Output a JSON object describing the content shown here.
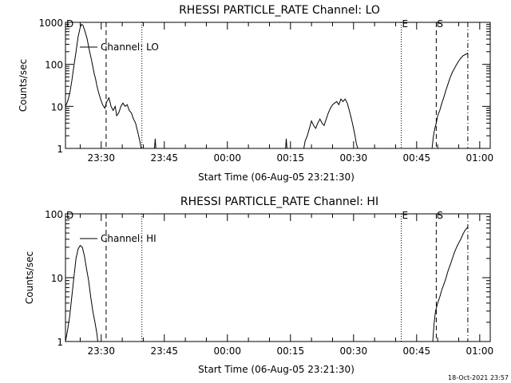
{
  "timestamp": "18-Oct-2021 23:57",
  "chart_data": [
    {
      "type": "line",
      "title": "RHESSI PARTICLE_RATE Channel: LO",
      "xlabel": "Start Time (06-Aug-05 23:21:30)",
      "ylabel": "Counts/sec",
      "y_scale": "log",
      "xlim": [
        "23:21:30",
        "01:02:30"
      ],
      "ylim": [
        1,
        1000
      ],
      "x_ticks": [
        "23:30",
        "23:45",
        "00:00",
        "00:15",
        "00:30",
        "00:45",
        "01:00"
      ],
      "y_ticks": [
        "1",
        "10",
        "100",
        "1000"
      ],
      "legend": "Channel: LO",
      "legend_position": "top-left",
      "markers": [
        {
          "label": "D",
          "time": "23:21:30",
          "style": "solid"
        },
        {
          "label": "",
          "time": "23:31:10",
          "style": "dashed"
        },
        {
          "label": "",
          "time": "23:39:40",
          "style": "dotted"
        },
        {
          "label": "E",
          "time": "00:41:20",
          "style": "dotted"
        },
        {
          "label": "S",
          "time": "00:49:40",
          "style": "dashed"
        },
        {
          "label": "",
          "time": "00:57:10",
          "style": "dashdot"
        }
      ],
      "series": [
        {
          "segments": [
            [
              [
                "23:21:30",
                10
              ],
              [
                "23:22:00",
                13
              ],
              [
                "23:22:30",
                20
              ],
              [
                "23:23:00",
                40
              ],
              [
                "23:23:30",
                90
              ],
              [
                "23:24:00",
                200
              ],
              [
                "23:24:30",
                450
              ],
              [
                "23:25:00",
                750
              ],
              [
                "23:25:20",
                900
              ],
              [
                "23:25:40",
                850
              ],
              [
                "23:26:10",
                600
              ],
              [
                "23:26:40",
                400
              ],
              [
                "23:27:10",
                220
              ],
              [
                "23:27:40",
                130
              ],
              [
                "23:28:00",
                90
              ],
              [
                "23:28:20",
                60
              ],
              [
                "23:28:40",
                45
              ],
              [
                "23:29:00",
                30
              ],
              [
                "23:29:20",
                22
              ],
              [
                "23:29:50",
                15
              ],
              [
                "23:30:20",
                11
              ],
              [
                "23:30:50",
                9
              ],
              [
                "23:31:20",
                13
              ],
              [
                "23:31:50",
                16
              ],
              [
                "23:32:20",
                10
              ],
              [
                "23:32:50",
                8
              ],
              [
                "23:33:20",
                10
              ],
              [
                "23:33:40",
                6
              ],
              [
                "23:34:10",
                7
              ],
              [
                "23:34:40",
                10
              ],
              [
                "23:35:10",
                12
              ],
              [
                "23:35:40",
                10
              ],
              [
                "23:36:10",
                11
              ],
              [
                "23:36:40",
                8
              ],
              [
                "23:37:10",
                7
              ],
              [
                "23:37:40",
                5
              ],
              [
                "23:38:10",
                4
              ],
              [
                "23:38:40",
                2.5
              ],
              [
                "23:39:10",
                1.5
              ],
              [
                "23:39:30",
                1
              ]
            ],
            [
              [
                "23:42:40",
                1
              ],
              [
                "23:42:50",
                1.7
              ],
              [
                "23:43:00",
                1
              ]
            ],
            [
              [
                "00:13:50",
                1
              ],
              [
                "00:14:00",
                1.7
              ],
              [
                "00:14:10",
                1
              ]
            ],
            [
              [
                "00:18:10",
                1
              ],
              [
                "00:18:30",
                1.5
              ],
              [
                "00:19:00",
                2
              ],
              [
                "00:19:30",
                3
              ],
              [
                "00:20:00",
                4.5
              ],
              [
                "00:20:30",
                3.5
              ],
              [
                "00:21:00",
                3
              ],
              [
                "00:21:30",
                4
              ],
              [
                "00:22:00",
                5
              ],
              [
                "00:22:30",
                4
              ],
              [
                "00:23:00",
                3.5
              ],
              [
                "00:23:30",
                5
              ],
              [
                "00:24:00",
                7
              ],
              [
                "00:24:30",
                9
              ],
              [
                "00:25:00",
                11
              ],
              [
                "00:25:30",
                12
              ],
              [
                "00:26:00",
                13
              ],
              [
                "00:26:30",
                11
              ],
              [
                "00:27:00",
                15
              ],
              [
                "00:27:30",
                13
              ],
              [
                "00:28:00",
                15
              ],
              [
                "00:28:30",
                12
              ],
              [
                "00:29:00",
                8
              ],
              [
                "00:29:30",
                5
              ],
              [
                "00:30:00",
                3
              ],
              [
                "00:30:20",
                2
              ],
              [
                "00:30:40",
                1.3
              ],
              [
                "00:31:00",
                1
              ]
            ],
            [
              [
                "00:48:40",
                1
              ],
              [
                "00:49:00",
                2
              ],
              [
                "00:49:20",
                3
              ],
              [
                "00:49:40",
                4
              ],
              [
                "00:50:00",
                6
              ],
              [
                "00:50:30",
                8
              ],
              [
                "00:51:00",
                12
              ],
              [
                "00:51:30",
                17
              ],
              [
                "00:52:00",
                25
              ],
              [
                "00:52:30",
                35
              ],
              [
                "00:53:00",
                50
              ],
              [
                "00:53:30",
                65
              ],
              [
                "00:54:00",
                80
              ],
              [
                "00:54:30",
                100
              ],
              [
                "00:55:00",
                120
              ],
              [
                "00:55:30",
                140
              ],
              [
                "00:56:00",
                160
              ],
              [
                "00:56:30",
                170
              ],
              [
                "00:57:00",
                180
              ],
              [
                "00:57:10",
                190
              ]
            ]
          ]
        }
      ]
    },
    {
      "type": "line",
      "title": "RHESSI PARTICLE_RATE Channel: HI",
      "xlabel": "Start Time (06-Aug-05 23:21:30)",
      "ylabel": "Counts/sec",
      "y_scale": "log",
      "xlim": [
        "23:21:30",
        "01:02:30"
      ],
      "ylim": [
        1,
        100
      ],
      "x_ticks": [
        "23:30",
        "23:45",
        "00:00",
        "00:15",
        "00:30",
        "00:45",
        "01:00"
      ],
      "y_ticks": [
        "1",
        "10",
        "100"
      ],
      "legend": "Channel: HI",
      "legend_position": "top-left",
      "markers": [
        {
          "label": "D",
          "time": "23:21:30",
          "style": "solid"
        },
        {
          "label": "",
          "time": "23:31:10",
          "style": "dashed"
        },
        {
          "label": "",
          "time": "23:39:40",
          "style": "dotted"
        },
        {
          "label": "E",
          "time": "00:41:20",
          "style": "dotted"
        },
        {
          "label": "S",
          "time": "00:49:40",
          "style": "dashed"
        },
        {
          "label": "",
          "time": "00:57:10",
          "style": "dashdot"
        }
      ],
      "series": [
        {
          "segments": [
            [
              [
                "23:21:30",
                1
              ],
              [
                "23:22:00",
                1.5
              ],
              [
                "23:22:30",
                2.5
              ],
              [
                "23:23:00",
                5
              ],
              [
                "23:23:30",
                10
              ],
              [
                "23:24:00",
                20
              ],
              [
                "23:24:30",
                28
              ],
              [
                "23:25:00",
                32
              ],
              [
                "23:25:30",
                30
              ],
              [
                "23:26:00",
                22
              ],
              [
                "23:26:30",
                14
              ],
              [
                "23:27:00",
                9
              ],
              [
                "23:27:30",
                5
              ],
              [
                "23:28:00",
                3
              ],
              [
                "23:28:30",
                2
              ],
              [
                "23:29:00",
                1.3
              ],
              [
                "23:29:10",
                1
              ]
            ],
            [
              [
                "00:48:50",
                1
              ],
              [
                "00:49:10",
                2
              ],
              [
                "00:49:30",
                3
              ],
              [
                "00:50:00",
                4
              ],
              [
                "00:50:30",
                5
              ],
              [
                "00:51:00",
                6.5
              ],
              [
                "00:51:30",
                8
              ],
              [
                "00:52:00",
                10
              ],
              [
                "00:52:30",
                13
              ],
              [
                "00:53:00",
                16
              ],
              [
                "00:53:30",
                20
              ],
              [
                "00:54:00",
                25
              ],
              [
                "00:54:30",
                30
              ],
              [
                "00:55:00",
                35
              ],
              [
                "00:55:30",
                40
              ],
              [
                "00:56:00",
                48
              ],
              [
                "00:56:30",
                55
              ],
              [
                "00:57:10",
                62
              ]
            ]
          ]
        }
      ]
    }
  ]
}
